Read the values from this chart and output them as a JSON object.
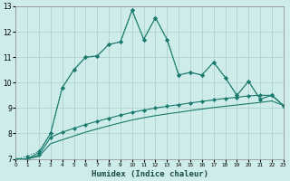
{
  "xlabel": "Humidex (Indice chaleur)",
  "x_values": [
    0,
    1,
    2,
    3,
    4,
    5,
    6,
    7,
    8,
    9,
    10,
    11,
    12,
    13,
    14,
    15,
    16,
    17,
    18,
    19,
    20,
    21,
    22,
    23
  ],
  "line1": [
    7.0,
    7.1,
    7.3,
    8.0,
    9.8,
    10.5,
    11.0,
    11.05,
    11.5,
    11.6,
    12.85,
    11.7,
    12.55,
    11.7,
    10.3,
    10.4,
    10.3,
    10.8,
    10.2,
    9.5,
    10.05,
    9.35,
    9.5,
    9.1
  ],
  "line2": [
    7.0,
    7.0,
    7.25,
    8.0,
    9.8,
    10.5,
    11.0,
    11.05,
    11.5,
    11.6,
    12.85,
    11.7,
    12.55,
    11.7,
    10.3,
    10.4,
    10.3,
    10.8,
    10.2,
    9.5,
    10.05,
    9.35,
    9.5,
    9.1
  ],
  "line3": [
    7.0,
    7.0,
    7.15,
    7.85,
    8.05,
    8.2,
    8.35,
    8.48,
    8.6,
    8.72,
    8.83,
    8.92,
    9.0,
    9.07,
    9.13,
    9.2,
    9.26,
    9.32,
    9.38,
    9.42,
    9.48,
    9.5,
    9.5,
    9.1
  ],
  "line4": [
    7.0,
    7.0,
    7.1,
    7.6,
    7.75,
    7.9,
    8.05,
    8.18,
    8.3,
    8.42,
    8.53,
    8.62,
    8.7,
    8.77,
    8.83,
    8.9,
    8.96,
    9.02,
    9.07,
    9.12,
    9.17,
    9.22,
    9.28,
    9.1
  ],
  "ylim": [
    7,
    13
  ],
  "xlim": [
    0,
    23
  ],
  "yticks": [
    7,
    8,
    9,
    10,
    11,
    12,
    13
  ],
  "xticks": [
    0,
    1,
    2,
    3,
    4,
    5,
    6,
    7,
    8,
    9,
    10,
    11,
    12,
    13,
    14,
    15,
    16,
    17,
    18,
    19,
    20,
    21,
    22,
    23
  ],
  "line_color": "#1a7a6e",
  "bg_color": "#cdecea",
  "grid_color": "#aacfcc",
  "markersize": 2.2,
  "linewidth": 0.8
}
